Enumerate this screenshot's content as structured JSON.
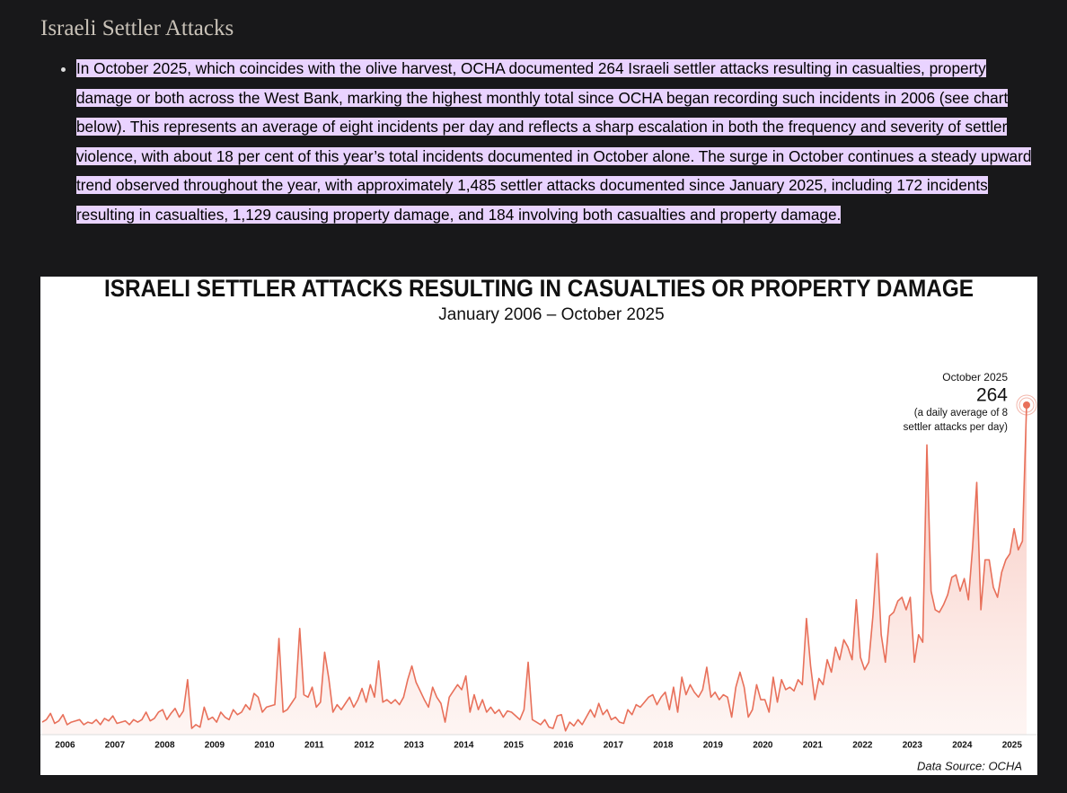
{
  "heading": "Israeli Settler Attacks",
  "paragraph": "In October 2025, which coincides with the olive harvest, OCHA documented 264 Israeli settler attacks resulting in casualties, property damage or both across the West Bank, marking the highest monthly total since OCHA began recording such incidents in 2006 (see chart below). This represents an average of eight incidents per day and reflects a sharp escalation in both the frequency and severity of settler violence, with about 18 per cent of this year’s total incidents documented in October alone. The surge in October continues a steady upward trend observed throughout the year, with approximately 1,485 settler attacks documented since January 2025, including 172 incidents resulting in casualties, 1,129 causing property damage, and 184 involving both casualties and property damage.",
  "chart_data": {
    "type": "area",
    "title": "ISRAELI SETTLER ATTACKS RESULTING IN CASUALTIES OR PROPERTY DAMAGE",
    "subtitle": "January 2006 – October 2025",
    "source": "Data Source: OCHA",
    "annotation": {
      "date": "October 2025",
      "lines": [
        "(a daily average of 8",
        "settler attacks per day)"
      ]
    },
    "categories": [
      null,
      null,
      null,
      null,
      null,
      null,
      "2006",
      null,
      null,
      null,
      null,
      null,
      null,
      null,
      null,
      null,
      null,
      null,
      "2007",
      null,
      null,
      null,
      null,
      null,
      null,
      null,
      null,
      null,
      null,
      null,
      "2008",
      null,
      null,
      null,
      null,
      null,
      null,
      null,
      null,
      null,
      null,
      null,
      "2009",
      null,
      null,
      null,
      null,
      null,
      null,
      null,
      null,
      null,
      null,
      null,
      "2010",
      null,
      null,
      null,
      null,
      null,
      null,
      null,
      null,
      null,
      null,
      null,
      "2011",
      null,
      null,
      null,
      null,
      null,
      null,
      null,
      null,
      null,
      null,
      null,
      "2012",
      null,
      null,
      null,
      null,
      null,
      null,
      null,
      null,
      null,
      null,
      null,
      "2013",
      null,
      null,
      null,
      null,
      null,
      null,
      null,
      null,
      null,
      null,
      null,
      "2014",
      null,
      null,
      null,
      null,
      null,
      null,
      null,
      null,
      null,
      null,
      null,
      "2015",
      null,
      null,
      null,
      null,
      null,
      null,
      null,
      null,
      null,
      null,
      null,
      "2016",
      null,
      null,
      null,
      null,
      null,
      null,
      null,
      null,
      null,
      null,
      null,
      "2017",
      null,
      null,
      null,
      null,
      null,
      null,
      null,
      null,
      null,
      null,
      null,
      "2018",
      null,
      null,
      null,
      null,
      null,
      null,
      null,
      null,
      null,
      null,
      null,
      "2019",
      null,
      null,
      null,
      null,
      null,
      null,
      null,
      null,
      null,
      null,
      null,
      "2020",
      null,
      null,
      null,
      null,
      null,
      null,
      null,
      null,
      null,
      null,
      null,
      "2021",
      null,
      null,
      null,
      null,
      null,
      null,
      null,
      null,
      null,
      null,
      null,
      "2022",
      null,
      null,
      null,
      null,
      null,
      null,
      null,
      null,
      null,
      null,
      null,
      "2023",
      null,
      null,
      null,
      null,
      null,
      null,
      null,
      null,
      null,
      null,
      null,
      "2024",
      null,
      null,
      null,
      null,
      null,
      null,
      null,
      null,
      null,
      null,
      null,
      "2025",
      null,
      null,
      null
    ],
    "series": [
      {
        "color": "#e8705a",
        "values": [
          10,
          12,
          17,
          9,
          11,
          16,
          8,
          10,
          11,
          12,
          8,
          10,
          9,
          12,
          8,
          13,
          11,
          15,
          9,
          10,
          11,
          8,
          12,
          10,
          12,
          18,
          11,
          13,
          18,
          20,
          12,
          17,
          21,
          14,
          19,
          44,
          5,
          8,
          6,
          22,
          12,
          14,
          10,
          18,
          14,
          12,
          20,
          16,
          18,
          24,
          20,
          33,
          30,
          18,
          22,
          23,
          24,
          77,
          18,
          20,
          25,
          30,
          85,
          32,
          30,
          38,
          22,
          26,
          66,
          45,
          18,
          24,
          20,
          25,
          30,
          22,
          28,
          37,
          26,
          40,
          30,
          59,
          26,
          28,
          25,
          28,
          24,
          30,
          44,
          55,
          42,
          35,
          28,
          22,
          38,
          30,
          25,
          10,
          30,
          35,
          40,
          36,
          47,
          18,
          32,
          20,
          28,
          18,
          22,
          17,
          20,
          14,
          19,
          18,
          15,
          12,
          20,
          58,
          12,
          10,
          8,
          12,
          6,
          5,
          15,
          16,
          3,
          10,
          7,
          12,
          8,
          14,
          20,
          14,
          25,
          16,
          20,
          12,
          14,
          10,
          9,
          20,
          16,
          24,
          22,
          26,
          30,
          32,
          24,
          30,
          34,
          20,
          38,
          18,
          46,
          32,
          40,
          34,
          30,
          36,
          54,
          30,
          34,
          28,
          32,
          30,
          14,
          38,
          50,
          38,
          14,
          20,
          40,
          28,
          28,
          18,
          46,
          26,
          44,
          36,
          38,
          35,
          44,
          40,
          93,
          55,
          28,
          45,
          40,
          60,
          50,
          70,
          60,
          76,
          70,
          60,
          108,
          62,
          52,
          58,
          95,
          145,
          80,
          58,
          95,
          98,
          107,
          110,
          100,
          110,
          58,
          80,
          74,
          232,
          115,
          100,
          98,
          104,
          112,
          126,
          128,
          115,
          125,
          108,
          150,
          202,
          100,
          140,
          140,
          118,
          110,
          130,
          140,
          145,
          165,
          148,
          155,
          264
        ]
      }
    ]
  }
}
